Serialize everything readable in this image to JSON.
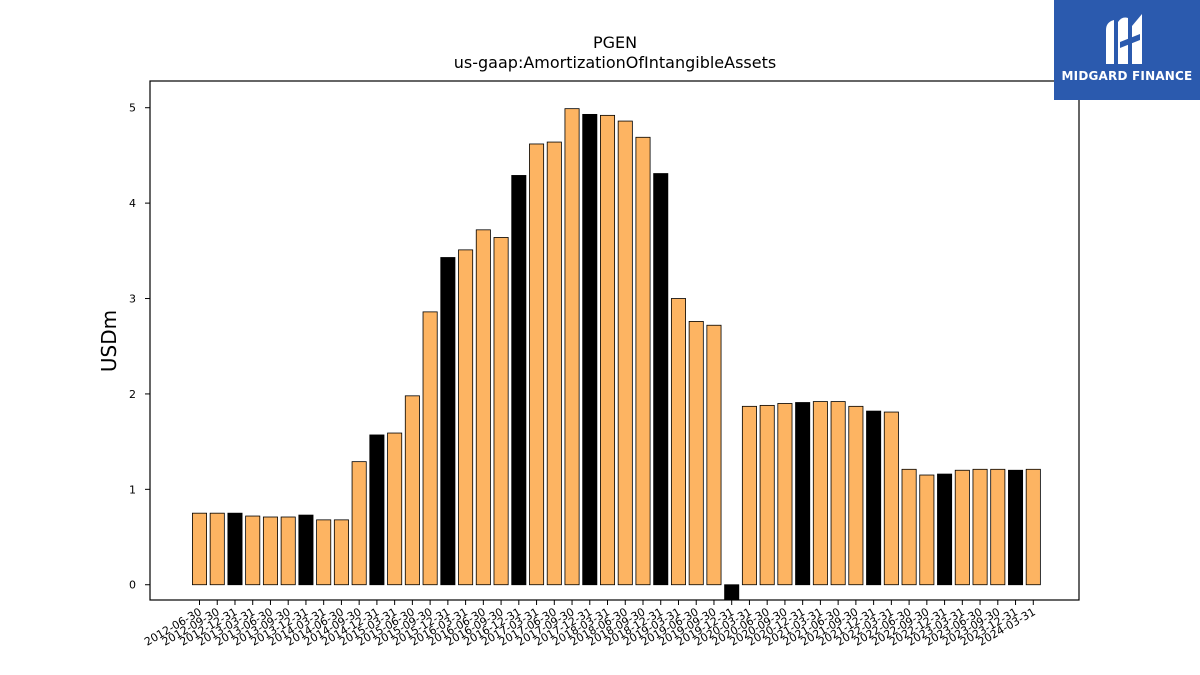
{
  "brand": {
    "name": "MIDGARD FINANCE",
    "color": "#2b5aae"
  },
  "colors": {
    "bar": "#fdb462",
    "highlight": "#000000",
    "edge": "#000000"
  },
  "chart_data": {
    "type": "bar",
    "title": "PGEN",
    "subtitle": "us-gaap:AmortizationOfIntangibleAssets",
    "xlabel": "",
    "ylabel": "USDm",
    "ylim": [
      -0.16,
      5.28
    ],
    "yticks": [
      0,
      1,
      2,
      3,
      4,
      5
    ],
    "grid": false,
    "categories": [
      "2012-06-30",
      "2012-09-30",
      "2012-12-31",
      "2013-03-31",
      "2013-06-30",
      "2013-09-30",
      "2013-12-31",
      "2014-03-31",
      "2014-06-30",
      "2014-09-30",
      "2014-12-31",
      "2015-03-31",
      "2015-06-30",
      "2015-09-30",
      "2015-12-31",
      "2016-03-31",
      "2016-06-30",
      "2016-09-30",
      "2016-12-31",
      "2017-03-31",
      "2017-06-30",
      "2017-09-30",
      "2017-12-31",
      "2018-03-31",
      "2018-06-30",
      "2018-09-30",
      "2018-12-31",
      "2019-03-31",
      "2019-06-30",
      "2019-09-30",
      "2019-12-31",
      "2020-03-31",
      "2020-06-30",
      "2020-09-30",
      "2020-12-31",
      "2021-03-31",
      "2021-06-30",
      "2021-09-30",
      "2021-12-31",
      "2022-03-31",
      "2022-06-30",
      "2022-09-30",
      "2022-12-31",
      "2023-03-31",
      "2023-06-30",
      "2023-09-30",
      "2023-12-31",
      "2024-03-31"
    ],
    "values": [
      0.75,
      0.75,
      0.75,
      0.72,
      0.71,
      0.71,
      0.73,
      0.68,
      0.68,
      1.29,
      1.57,
      1.59,
      1.98,
      2.86,
      3.43,
      3.51,
      3.72,
      3.64,
      4.29,
      4.62,
      4.64,
      4.99,
      4.93,
      4.92,
      4.86,
      4.69,
      4.31,
      3.0,
      2.76,
      2.72,
      -0.16,
      1.87,
      1.88,
      1.9,
      1.91,
      1.92,
      1.92,
      1.87,
      1.82,
      1.81,
      1.21,
      1.15,
      1.16,
      1.2,
      1.21,
      1.21,
      1.2,
      1.21
    ],
    "highlighted": [
      false,
      false,
      true,
      false,
      false,
      false,
      true,
      false,
      false,
      false,
      true,
      false,
      false,
      false,
      true,
      false,
      false,
      false,
      true,
      false,
      false,
      false,
      true,
      false,
      false,
      false,
      true,
      false,
      false,
      false,
      true,
      false,
      false,
      false,
      true,
      false,
      false,
      false,
      true,
      false,
      false,
      false,
      true,
      false,
      false,
      false,
      true,
      false
    ]
  }
}
